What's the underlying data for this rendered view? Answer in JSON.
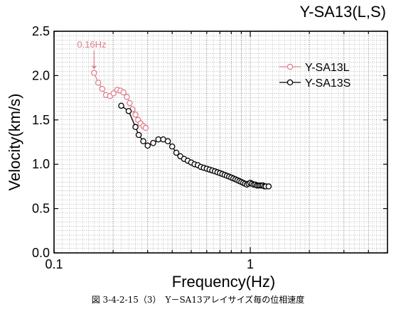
{
  "chart_data": {
    "type": "line",
    "title": "Y-SA13(L,S)",
    "xlabel": "Frequency(Hz)",
    "ylabel": "Velocity(km/s)",
    "x_scale": "log",
    "xlim": [
      0.1,
      5
    ],
    "ylim": [
      0,
      2.5
    ],
    "grid": true,
    "legend_position": "top-right",
    "x_ticks": [
      {
        "value": 0.1,
        "label": "0.1"
      },
      {
        "value": 1,
        "label": "1"
      }
    ],
    "y_ticks": [
      {
        "value": 0.0,
        "label": "0.0"
      },
      {
        "value": 0.5,
        "label": "0.5"
      },
      {
        "value": 1.0,
        "label": "1.0"
      },
      {
        "value": 1.5,
        "label": "1.5"
      },
      {
        "value": 2.0,
        "label": "2.0"
      },
      {
        "value": 2.5,
        "label": "2.5"
      }
    ],
    "annotation": {
      "text": "0.16Hz",
      "x": 0.16,
      "y": 2.03,
      "color": "#e07f8e"
    },
    "series": [
      {
        "name": "Y-SA13L",
        "color": "#e07f8e",
        "x": [
          0.16,
          0.168,
          0.176,
          0.184,
          0.193,
          0.201,
          0.21,
          0.218,
          0.226,
          0.235,
          0.243,
          0.251,
          0.26,
          0.268,
          0.276,
          0.285,
          0.293
        ],
        "y": [
          2.03,
          1.92,
          1.85,
          1.78,
          1.77,
          1.8,
          1.84,
          1.83,
          1.81,
          1.76,
          1.69,
          1.62,
          1.56,
          1.5,
          1.46,
          1.43,
          1.41
        ]
      },
      {
        "name": "Y-SA13S",
        "color": "#000000",
        "x": [
          0.22,
          0.24,
          0.26,
          0.27,
          0.285,
          0.3,
          0.32,
          0.34,
          0.36,
          0.38,
          0.4,
          0.42,
          0.44,
          0.46,
          0.48,
          0.5,
          0.52,
          0.54,
          0.56,
          0.58,
          0.6,
          0.62,
          0.64,
          0.66,
          0.68,
          0.7,
          0.72,
          0.74,
          0.76,
          0.78,
          0.8,
          0.82,
          0.84,
          0.86,
          0.88,
          0.9,
          0.92,
          0.94,
          0.96,
          0.98,
          1.0,
          1.02,
          1.04,
          1.06,
          1.08,
          1.1,
          1.12,
          1.14,
          1.16,
          1.18,
          1.2,
          1.24
        ],
        "y": [
          1.66,
          1.6,
          1.42,
          1.33,
          1.26,
          1.21,
          1.24,
          1.28,
          1.28,
          1.26,
          1.2,
          1.13,
          1.09,
          1.06,
          1.04,
          1.02,
          1.0,
          0.99,
          0.97,
          0.96,
          0.95,
          0.94,
          0.93,
          0.92,
          0.91,
          0.9,
          0.89,
          0.88,
          0.87,
          0.86,
          0.85,
          0.84,
          0.83,
          0.82,
          0.81,
          0.8,
          0.79,
          0.78,
          0.77,
          0.78,
          0.79,
          0.78,
          0.77,
          0.77,
          0.76,
          0.76,
          0.76,
          0.76,
          0.76,
          0.75,
          0.75,
          0.75
        ]
      }
    ]
  },
  "caption": "図 3-4-2-15（3）　Y－SA13アレイサイズ毎の位相速度"
}
